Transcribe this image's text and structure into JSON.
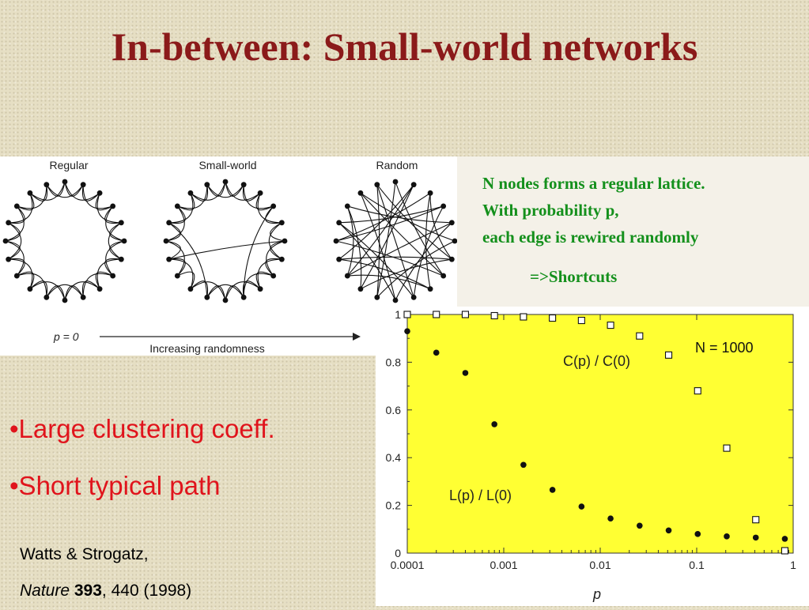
{
  "slide": {
    "title": "In-between: Small-world networks"
  },
  "networks": {
    "labels": [
      "Regular",
      "Small-world",
      "Random"
    ],
    "p_start": "p = 0",
    "randomness_label": "Increasing randomness"
  },
  "description": {
    "lines": [
      "N nodes forms a regular lattice.",
      "With probability p,",
      "each edge is rewired randomly"
    ],
    "result": "=>Shortcuts"
  },
  "bullets": [
    "•Large clustering coeff.",
    "•Short typical path"
  ],
  "reference": {
    "authors": "Watts & Strogatz,",
    "journal": "Nature",
    "volume": "393",
    "rest": ", 440 (1998)"
  },
  "colors": {
    "title": "#8b1a1a",
    "desc_text": "#14901c",
    "bullet_text": "#e0141c",
    "plot_bg": "#ffff33"
  },
  "chart_data": {
    "type": "scatter",
    "xscale": "log",
    "xlabel": "p",
    "xlim": [
      0.0001,
      1
    ],
    "ylim": [
      0,
      1
    ],
    "x_ticks": [
      "0.0001",
      "0.001",
      "0.01",
      "0.1",
      "1"
    ],
    "y_ticks": [
      "0",
      "0.2",
      "0.4",
      "0.6",
      "0.8",
      "1"
    ],
    "annotation": "N = 1000",
    "series": [
      {
        "name": "C(p) / C(0)",
        "marker": "open-square",
        "x": [
          0.0001,
          0.0002,
          0.0004,
          0.0008,
          0.0016,
          0.0032,
          0.0064,
          0.0128,
          0.0256,
          0.0512,
          0.1024,
          0.2048,
          0.4096,
          0.8192
        ],
        "y": [
          1.0,
          1.0,
          1.0,
          0.995,
          0.99,
          0.985,
          0.975,
          0.955,
          0.91,
          0.83,
          0.68,
          0.44,
          0.14,
          0.01
        ]
      },
      {
        "name": "L(p) / L(0)",
        "marker": "filled-circle",
        "x": [
          0.0001,
          0.0002,
          0.0004,
          0.0008,
          0.0016,
          0.0032,
          0.0064,
          0.0128,
          0.0256,
          0.0512,
          0.1024,
          0.2048,
          0.4096,
          0.8192
        ],
        "y": [
          0.93,
          0.84,
          0.755,
          0.54,
          0.37,
          0.265,
          0.195,
          0.145,
          0.115,
          0.095,
          0.08,
          0.07,
          0.065,
          0.06
        ]
      }
    ]
  }
}
